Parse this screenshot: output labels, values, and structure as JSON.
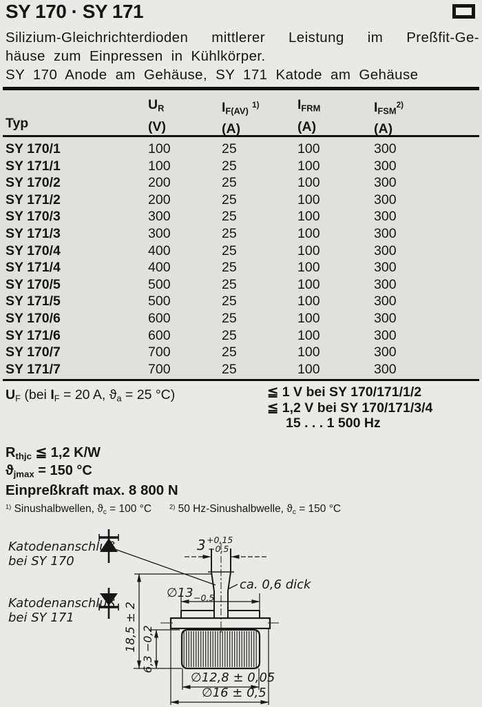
{
  "colors": {
    "ink": "#161616",
    "paper": "#e9eae6",
    "table_band": "#e0e1dd"
  },
  "header": {
    "title": "SY 170 · SY 171",
    "description_lines": [
      "Silizium-Gleichrichterdioden mittlerer Leistung im Preßfit-Ge-",
      "häuse zum Einpressen in Kühlkörper.",
      "SY 170 Anode am Gehäuse, SY 171 Katode am Gehäuse"
    ]
  },
  "table": {
    "headers": [
      {
        "label": [
          {
            "t": "Typ"
          }
        ],
        "unit": ""
      },
      {
        "label": [
          {
            "t": "U"
          },
          {
            "sub": "R"
          }
        ],
        "unit": "(V)"
      },
      {
        "label": [
          {
            "t": "I"
          },
          {
            "sub": "F(AV)"
          },
          {
            "t": " "
          },
          {
            "sup": "1)"
          }
        ],
        "unit": "(A)"
      },
      {
        "label": [
          {
            "t": "I"
          },
          {
            "sub": "FRM"
          }
        ],
        "unit": "(A)"
      },
      {
        "label": [
          {
            "t": "I"
          },
          {
            "sub": "FSM"
          },
          {
            "sup": "2)"
          }
        ],
        "unit": "(A)"
      }
    ],
    "rows": [
      [
        "SY 170/1",
        "100",
        "25",
        "100",
        "300"
      ],
      [
        "SY 171/1",
        "100",
        "25",
        "100",
        "300"
      ],
      [
        "SY 170/2",
        "200",
        "25",
        "100",
        "300"
      ],
      [
        "SY 171/2",
        "200",
        "25",
        "100",
        "300"
      ],
      [
        "SY 170/3",
        "300",
        "25",
        "100",
        "300"
      ],
      [
        "SY 171/3",
        "300",
        "25",
        "100",
        "300"
      ],
      [
        "SY 170/4",
        "400",
        "25",
        "100",
        "300"
      ],
      [
        "SY 171/4",
        "400",
        "25",
        "100",
        "300"
      ],
      [
        "SY 170/5",
        "500",
        "25",
        "100",
        "300"
      ],
      [
        "SY 171/5",
        "500",
        "25",
        "100",
        "300"
      ],
      [
        "SY 170/6",
        "600",
        "25",
        "100",
        "300"
      ],
      [
        "SY 171/6",
        "600",
        "25",
        "100",
        "300"
      ],
      [
        "SY 170/7",
        "700",
        "25",
        "100",
        "300"
      ],
      [
        "SY 171/7",
        "700",
        "25",
        "100",
        "300"
      ]
    ]
  },
  "uf": {
    "lhs": [
      {
        "t": "U",
        "b": 1
      },
      {
        "sub": "F"
      },
      {
        "t": "  (bei "
      },
      {
        "t": "I",
        "b": 1
      },
      {
        "sub": "F"
      },
      {
        "t": " = 20 A, ϑ"
      },
      {
        "sub": "a"
      },
      {
        "t": " = 25 °C)"
      }
    ],
    "rhs_line1": "≦ 1 V bei SY 170/171/1/2",
    "rhs_line2": "≦ 1,2 V bei SY 170/171/3/4",
    "rhs_line3": "15 . . . 1 500 Hz"
  },
  "ratings": {
    "rth": [
      {
        "t": "R"
      },
      {
        "sub": "thjc"
      },
      {
        "t": " ≦ 1,2 K/W"
      }
    ],
    "tjmax": [
      {
        "t": "ϑ"
      },
      {
        "sub": "jmax"
      },
      {
        "t": " = 150 °C"
      }
    ],
    "press": "Einpreßkraft max. 8 800 N"
  },
  "footnotes": {
    "fn1": [
      {
        "sup": "1)"
      },
      {
        "t": " Sinushalbwellen, ϑ"
      },
      {
        "sub": "c"
      },
      {
        "t": " = 100 °C"
      }
    ],
    "fn2": [
      {
        "sup": "2)"
      },
      {
        "t": " 50 Hz-Sinushalbwelle, ϑ"
      },
      {
        "sub": "c"
      },
      {
        "t": " = 150 °C"
      }
    ]
  },
  "diagram": {
    "label_cathode_170_line1": "Katodenanschluß",
    "label_cathode_170_line2": "bei SY 170",
    "label_cathode_171_line1": "Katodenanschluß",
    "label_cathode_171_line2": "bei SY 171",
    "dim_tab_width": "3",
    "dim_tab_tol_plus": "+0,15",
    "dim_tab_tol_minus": "−0,5",
    "thickness_note": "ca. 0,6 dick",
    "dim_cap_diameter": "∅13",
    "dim_cap_tol": "−0,5",
    "dim_total_height": "18,5 ± 2",
    "dim_knurl_height": "6,3 −0,2",
    "dim_knurl_diameter": "∅12,8 ± 0,05",
    "dim_flange_diameter": "∅16 ± 0,5"
  }
}
